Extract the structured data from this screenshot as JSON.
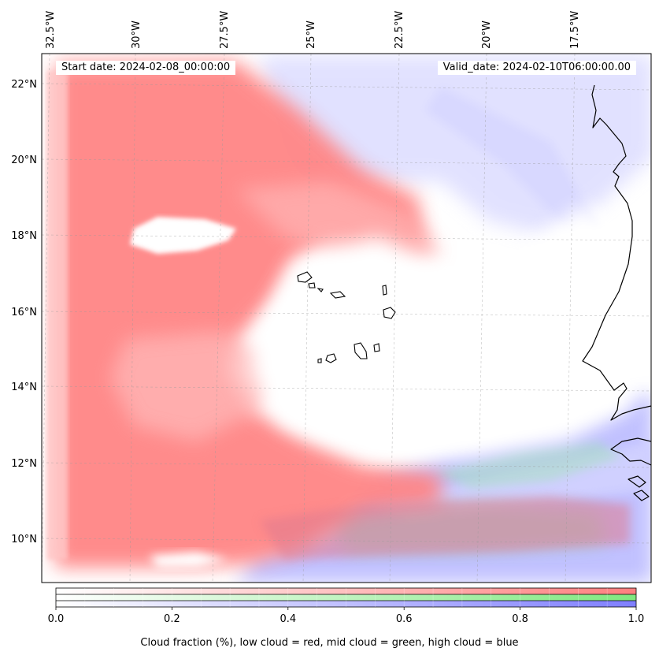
{
  "map": {
    "start_date": "Start date: 2024-02-08_00:00:00",
    "valid_date": "Valid_date: 2024-02-10T06:00:00.00",
    "lon_labels": [
      "32.5°W",
      "30°W",
      "27.5°W",
      "25°W",
      "22.5°W",
      "20°W",
      "17.5°W"
    ],
    "lat_labels": [
      "22°N",
      "20°N",
      "18°N",
      "16°N",
      "14°N",
      "12°N",
      "10°N"
    ],
    "layers": [
      {
        "name": "low cloud",
        "color": "#ff7f7f"
      },
      {
        "name": "mid cloud",
        "color": "#7fe87f"
      },
      {
        "name": "high cloud",
        "color": "#7f7fff"
      }
    ]
  },
  "colorbar": {
    "ticks": [
      "0.0",
      "0.2",
      "0.4",
      "0.6",
      "0.8",
      "1.0"
    ],
    "tick_values": [
      0,
      0.2,
      0.4,
      0.6,
      0.8,
      1.0
    ],
    "range": [
      0,
      1
    ],
    "caption": "Cloud fraction (%), low cloud = red, mid cloud = green, high cloud = blue"
  }
}
